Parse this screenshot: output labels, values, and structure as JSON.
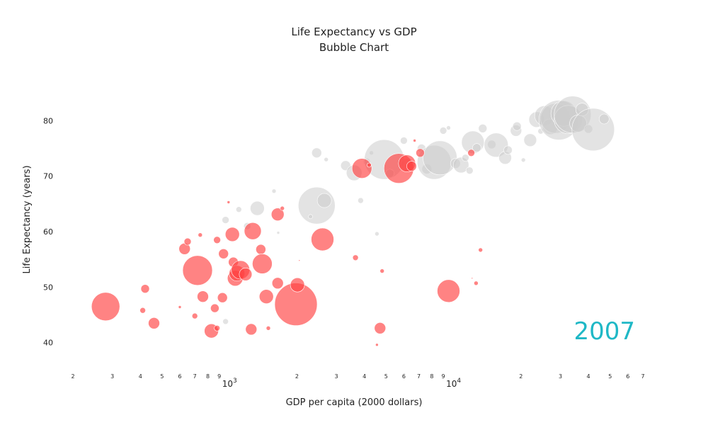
{
  "chart_data": {
    "type": "scatter",
    "title": "Life Expectancy vs GDP",
    "subtitle": "Bubble Chart",
    "xlabel": "GDP per capita (2000 dollars)",
    "ylabel": "Life Expectancy (years)",
    "x_scale": "log",
    "xlim": [
      200,
      70000
    ],
    "ylim": [
      36,
      90
    ],
    "y_ticks": [
      40,
      50,
      60,
      70,
      80
    ],
    "x_minor_ticks": [
      {
        "value": 200,
        "label": "2"
      },
      {
        "value": 300,
        "label": "3"
      },
      {
        "value": 400,
        "label": "4"
      },
      {
        "value": 500,
        "label": "5"
      },
      {
        "value": 600,
        "label": "6"
      },
      {
        "value": 700,
        "label": "7"
      },
      {
        "value": 800,
        "label": "8"
      },
      {
        "value": 900,
        "label": "9"
      },
      {
        "value": 2000,
        "label": "2"
      },
      {
        "value": 3000,
        "label": "3"
      },
      {
        "value": 4000,
        "label": "4"
      },
      {
        "value": 5000,
        "label": "5"
      },
      {
        "value": 6000,
        "label": "6"
      },
      {
        "value": 7000,
        "label": "7"
      },
      {
        "value": 8000,
        "label": "8"
      },
      {
        "value": 9000,
        "label": "9"
      },
      {
        "value": 20000,
        "label": "2"
      },
      {
        "value": 30000,
        "label": "3"
      },
      {
        "value": 40000,
        "label": "4"
      },
      {
        "value": 50000,
        "label": "5"
      },
      {
        "value": 60000,
        "label": "6"
      },
      {
        "value": 70000,
        "label": "7"
      }
    ],
    "x_major_ticks": [
      {
        "value": 1000,
        "base": "10",
        "exp": "3"
      },
      {
        "value": 10000,
        "base": "10",
        "exp": "4"
      }
    ],
    "annotation": {
      "text": "2007",
      "color": "#1fb8c6"
    },
    "grid": false,
    "series": [
      {
        "highlight": true,
        "color": "#ff4040",
        "opacity": 0.65,
        "points": [
          {
            "x": 280,
            "y": 46.5,
            "r": 20
          },
          {
            "x": 420,
            "y": 49.7,
            "r": 6
          },
          {
            "x": 410,
            "y": 45.8,
            "r": 4
          },
          {
            "x": 460,
            "y": 43.5,
            "r": 8
          },
          {
            "x": 600,
            "y": 46.4,
            "r": 2
          },
          {
            "x": 630,
            "y": 56.9,
            "r": 8
          },
          {
            "x": 650,
            "y": 58.2,
            "r": 5
          },
          {
            "x": 720,
            "y": 53.0,
            "r": 21
          },
          {
            "x": 700,
            "y": 44.8,
            "r": 4
          },
          {
            "x": 740,
            "y": 59.4,
            "r": 3
          },
          {
            "x": 760,
            "y": 48.3,
            "r": 8
          },
          {
            "x": 830,
            "y": 42.1,
            "r": 10
          },
          {
            "x": 860,
            "y": 46.2,
            "r": 6
          },
          {
            "x": 880,
            "y": 42.6,
            "r": 4
          },
          {
            "x": 880,
            "y": 58.5,
            "r": 5
          },
          {
            "x": 940,
            "y": 56.0,
            "r": 7
          },
          {
            "x": 930,
            "y": 48.1,
            "r": 7
          },
          {
            "x": 990,
            "y": 65.3,
            "r": 2
          },
          {
            "x": 1030,
            "y": 59.5,
            "r": 10
          },
          {
            "x": 1040,
            "y": 54.5,
            "r": 7
          },
          {
            "x": 1060,
            "y": 51.6,
            "r": 11
          },
          {
            "x": 1080,
            "y": 52.5,
            "r": 11
          },
          {
            "x": 1120,
            "y": 53.1,
            "r": 13
          },
          {
            "x": 1180,
            "y": 52.3,
            "r": 9
          },
          {
            "x": 1250,
            "y": 42.4,
            "r": 8
          },
          {
            "x": 1270,
            "y": 60.1,
            "r": 12
          },
          {
            "x": 1380,
            "y": 56.8,
            "r": 7
          },
          {
            "x": 1400,
            "y": 54.2,
            "r": 14
          },
          {
            "x": 1460,
            "y": 48.3,
            "r": 10
          },
          {
            "x": 1490,
            "y": 42.6,
            "r": 3
          },
          {
            "x": 1640,
            "y": 50.7,
            "r": 8
          },
          {
            "x": 1640,
            "y": 63.1,
            "r": 9
          },
          {
            "x": 1720,
            "y": 64.2,
            "r": 3
          },
          {
            "x": 1980,
            "y": 46.9,
            "r": 30
          },
          {
            "x": 2010,
            "y": 50.4,
            "r": 10
          },
          {
            "x": 2050,
            "y": 54.8,
            "r": 1
          },
          {
            "x": 2600,
            "y": 58.6,
            "r": 16
          },
          {
            "x": 3650,
            "y": 55.3,
            "r": 4
          },
          {
            "x": 3900,
            "y": 71.4,
            "r": 14
          },
          {
            "x": 4550,
            "y": 39.6,
            "r": 2
          },
          {
            "x": 4700,
            "y": 42.6,
            "r": 8
          },
          {
            "x": 4800,
            "y": 52.9,
            "r": 3
          },
          {
            "x": 5700,
            "y": 71.4,
            "r": 21
          },
          {
            "x": 6200,
            "y": 72.3,
            "r": 12
          },
          {
            "x": 6500,
            "y": 71.8,
            "r": 7
          },
          {
            "x": 6700,
            "y": 76.4,
            "r": 2
          },
          {
            "x": 7100,
            "y": 74.2,
            "r": 6
          },
          {
            "x": 9500,
            "y": 49.3,
            "r": 16
          },
          {
            "x": 12000,
            "y": 74.2,
            "r": 5
          },
          {
            "x": 12600,
            "y": 50.7,
            "r": 3
          },
          {
            "x": 13200,
            "y": 56.7,
            "r": 3
          },
          {
            "x": 12100,
            "y": 51.6,
            "r": 1
          },
          {
            "x": 4200,
            "y": 72.0,
            "r": 3
          }
        ]
      },
      {
        "highlight": false,
        "color": "#cccccc",
        "opacity": 0.55,
        "points": [
          {
            "x": 2450,
            "y": 64.7,
            "r": 26
          },
          {
            "x": 2650,
            "y": 65.6,
            "r": 10
          },
          {
            "x": 2450,
            "y": 74.2,
            "r": 7
          },
          {
            "x": 1330,
            "y": 64.2,
            "r": 10
          },
          {
            "x": 1100,
            "y": 64.0,
            "r": 4
          },
          {
            "x": 960,
            "y": 62.1,
            "r": 5
          },
          {
            "x": 1200,
            "y": 61.0,
            "r": 5
          },
          {
            "x": 1580,
            "y": 67.3,
            "r": 3
          },
          {
            "x": 1650,
            "y": 59.8,
            "r": 2
          },
          {
            "x": 960,
            "y": 43.8,
            "r": 4
          },
          {
            "x": 2700,
            "y": 73.0,
            "r": 3
          },
          {
            "x": 2300,
            "y": 62.7,
            "r": 3
          },
          {
            "x": 3300,
            "y": 71.9,
            "r": 7
          },
          {
            "x": 3600,
            "y": 70.6,
            "r": 11
          },
          {
            "x": 3850,
            "y": 65.6,
            "r": 4
          },
          {
            "x": 4100,
            "y": 72.6,
            "r": 5
          },
          {
            "x": 4300,
            "y": 74.2,
            "r": 3
          },
          {
            "x": 4550,
            "y": 59.6,
            "r": 3
          },
          {
            "x": 4900,
            "y": 73.0,
            "r": 28
          },
          {
            "x": 5200,
            "y": 70.5,
            "r": 6
          },
          {
            "x": 6000,
            "y": 76.4,
            "r": 5
          },
          {
            "x": 6200,
            "y": 72.0,
            "r": 9
          },
          {
            "x": 7200,
            "y": 75.0,
            "r": 6
          },
          {
            "x": 7600,
            "y": 71.3,
            "r": 7
          },
          {
            "x": 8200,
            "y": 72.5,
            "r": 24
          },
          {
            "x": 8700,
            "y": 73.3,
            "r": 24
          },
          {
            "x": 9000,
            "y": 78.2,
            "r": 5
          },
          {
            "x": 9500,
            "y": 78.7,
            "r": 3
          },
          {
            "x": 10200,
            "y": 72.3,
            "r": 7
          },
          {
            "x": 10800,
            "y": 72.0,
            "r": 11
          },
          {
            "x": 11300,
            "y": 73.3,
            "r": 5
          },
          {
            "x": 11800,
            "y": 71.0,
            "r": 5
          },
          {
            "x": 12200,
            "y": 76.1,
            "r": 16
          },
          {
            "x": 12700,
            "y": 75.1,
            "r": 6
          },
          {
            "x": 13500,
            "y": 78.6,
            "r": 6
          },
          {
            "x": 14800,
            "y": 75.7,
            "r": 6
          },
          {
            "x": 15500,
            "y": 75.6,
            "r": 17
          },
          {
            "x": 17000,
            "y": 73.3,
            "r": 9
          },
          {
            "x": 17500,
            "y": 74.7,
            "r": 6
          },
          {
            "x": 19000,
            "y": 78.2,
            "r": 8
          },
          {
            "x": 19200,
            "y": 79.0,
            "r": 6
          },
          {
            "x": 20500,
            "y": 72.9,
            "r": 3
          },
          {
            "x": 22000,
            "y": 76.5,
            "r": 9
          },
          {
            "x": 23500,
            "y": 80.2,
            "r": 11
          },
          {
            "x": 24500,
            "y": 78.1,
            "r": 4
          },
          {
            "x": 25500,
            "y": 80.9,
            "r": 14
          },
          {
            "x": 27000,
            "y": 78.9,
            "r": 11
          },
          {
            "x": 28500,
            "y": 80.4,
            "r": 21
          },
          {
            "x": 29500,
            "y": 80.1,
            "r": 28
          },
          {
            "x": 31000,
            "y": 81.3,
            "r": 18
          },
          {
            "x": 32500,
            "y": 80.2,
            "r": 20
          },
          {
            "x": 34000,
            "y": 81.1,
            "r": 26
          },
          {
            "x": 36000,
            "y": 79.5,
            "r": 12
          },
          {
            "x": 37500,
            "y": 82.0,
            "r": 9
          },
          {
            "x": 40000,
            "y": 78.5,
            "r": 6
          },
          {
            "x": 42000,
            "y": 78.4,
            "r": 30
          },
          {
            "x": 47000,
            "y": 80.3,
            "r": 7
          }
        ]
      }
    ]
  }
}
